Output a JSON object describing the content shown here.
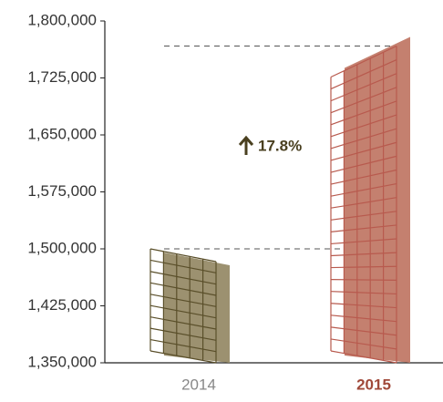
{
  "chart_data": {
    "type": "bar",
    "categories": [
      "2014",
      "2015"
    ],
    "values": [
      1500000,
      1767000
    ],
    "colors": [
      "#9c9170",
      "#c4806f"
    ],
    "annotation": "17.8%",
    "ylim": [
      1350000,
      1800000
    ],
    "yticks": [
      {
        "value": 1350000,
        "label": "1,350,000"
      },
      {
        "value": 1425000,
        "label": "1,425,000"
      },
      {
        "value": 1500000,
        "label": "1,500,000"
      },
      {
        "value": 1575000,
        "label": "1,575,000"
      },
      {
        "value": 1650000,
        "label": "1,650,000"
      },
      {
        "value": 1725000,
        "label": "1,725,000"
      },
      {
        "value": 1800000,
        "label": "1,800,000"
      }
    ]
  }
}
